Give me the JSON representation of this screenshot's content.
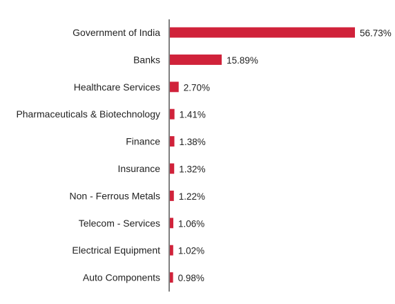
{
  "chart_data": {
    "type": "bar",
    "orientation": "horizontal",
    "categories": [
      "Government of India",
      "Banks",
      "Healthcare Services",
      "Pharmaceuticals & Biotechnology",
      "Finance",
      "Insurance",
      "Non - Ferrous Metals",
      "Telecom - Services",
      "Electrical Equipment",
      "Auto Components"
    ],
    "values": [
      56.73,
      15.89,
      2.7,
      1.41,
      1.38,
      1.32,
      1.22,
      1.06,
      1.02,
      0.98
    ],
    "value_labels": [
      "56.73%",
      "15.89%",
      "2.70%",
      "1.41%",
      "1.38%",
      "1.32%",
      "1.22%",
      "1.06%",
      "1.02%",
      "0.98%"
    ],
    "title": "",
    "xlabel": "",
    "ylabel": "",
    "grid": false,
    "legend": "none",
    "colors": {
      "bar": "#d0223a",
      "axis": "#7f7f7f",
      "text": "#222222"
    }
  }
}
